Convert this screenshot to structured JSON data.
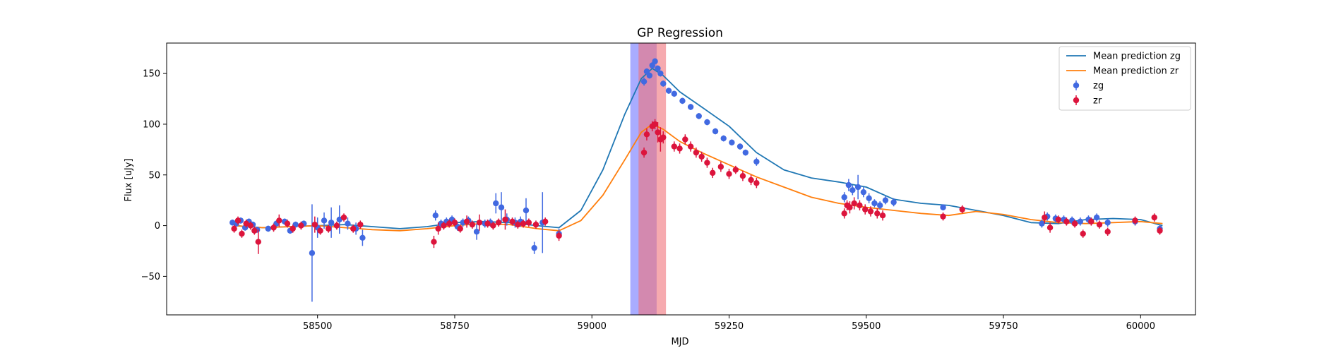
{
  "chart_data": {
    "type": "scatter",
    "title": "GP Regression",
    "xlabel": "MJD",
    "ylabel": "Flux [uJy]",
    "xlim": [
      58225,
      60100
    ],
    "ylim": [
      -88,
      180
    ],
    "xticks": [
      58500,
      58750,
      59000,
      59250,
      59500,
      59750,
      60000
    ],
    "yticks": [
      -50,
      0,
      50,
      100,
      150
    ],
    "grid": false,
    "legend_position": "top-right",
    "shaded_regions": [
      {
        "band": "zg",
        "x_start": 59070,
        "x_end": 59118,
        "color": "#6f74ff"
      },
      {
        "band": "zr",
        "x_start": 59085,
        "x_end": 59135,
        "color": "#f0727a"
      }
    ],
    "series": [
      {
        "name": "Mean prediction zg",
        "kind": "line",
        "color": "#1f77b4",
        "x": [
          58350,
          58400,
          58450,
          58500,
          58550,
          58600,
          58650,
          58700,
          58750,
          58800,
          58850,
          58900,
          58940,
          58980,
          59020,
          59060,
          59090,
          59110,
          59130,
          59160,
          59200,
          59250,
          59300,
          59350,
          59400,
          59450,
          59500,
          59550,
          59600,
          59650,
          59700,
          59750,
          59800,
          59850,
          59900,
          59950,
          60000,
          60040
        ],
        "y": [
          0,
          -2,
          -1,
          0,
          1,
          -1,
          -3,
          -1,
          3,
          4,
          3,
          0,
          -2,
          15,
          55,
          110,
          145,
          155,
          148,
          132,
          117,
          98,
          72,
          55,
          47,
          43,
          38,
          26,
          22,
          20,
          15,
          10,
          3,
          2,
          6,
          7,
          6,
          0
        ]
      },
      {
        "name": "Mean prediction zr",
        "kind": "line",
        "color": "#ff7f0e",
        "x": [
          58350,
          58400,
          58450,
          58500,
          58550,
          58600,
          58650,
          58700,
          58750,
          58800,
          58850,
          58900,
          58940,
          58980,
          59020,
          59060,
          59090,
          59110,
          59130,
          59160,
          59200,
          59250,
          59300,
          59350,
          59400,
          59450,
          59500,
          59550,
          59600,
          59650,
          59700,
          59750,
          59800,
          59850,
          59900,
          59950,
          60000,
          60040
        ],
        "y": [
          0,
          -2,
          -1,
          0,
          -2,
          -4,
          -5,
          -3,
          0,
          2,
          1,
          -3,
          -5,
          5,
          30,
          65,
          92,
          100,
          95,
          83,
          72,
          60,
          48,
          38,
          28,
          22,
          18,
          15,
          12,
          10,
          14,
          11,
          6,
          3,
          2,
          3,
          4,
          2
        ]
      },
      {
        "name": "zg",
        "kind": "errorbar",
        "color": "#4169e1",
        "x": [
          58345,
          58352,
          58360,
          58368,
          58375,
          58382,
          58390,
          58410,
          58425,
          58440,
          58450,
          58460,
          58475,
          58490,
          58500,
          58512,
          58525,
          58540,
          58555,
          58570,
          58582,
          58715,
          58725,
          58735,
          58745,
          58755,
          58765,
          58775,
          58790,
          58805,
          58815,
          58825,
          58835,
          58845,
          58860,
          58870,
          58880,
          58895,
          58910,
          58940,
          59095,
          59100,
          59105,
          59110,
          59115,
          59120,
          59125,
          59130,
          59140,
          59150,
          59165,
          59180,
          59195,
          59210,
          59225,
          59240,
          59255,
          59270,
          59280,
          59300,
          59460,
          59468,
          59475,
          59485,
          59495,
          59505,
          59515,
          59525,
          59535,
          59550,
          59640,
          59820,
          59830,
          59845,
          59860,
          59875,
          59890,
          59905,
          59920,
          59940,
          59990,
          60035
        ],
        "y": [
          3,
          2,
          5,
          -2,
          4,
          1,
          -4,
          -3,
          2,
          4,
          -5,
          1,
          2,
          -27,
          -2,
          5,
          3,
          6,
          2,
          -3,
          -12,
          10,
          2,
          4,
          6,
          -1,
          3,
          5,
          -6,
          2,
          3,
          22,
          18,
          6,
          3,
          4,
          15,
          -22,
          3,
          -8,
          142,
          152,
          148,
          158,
          162,
          155,
          150,
          140,
          133,
          130,
          123,
          117,
          108,
          102,
          93,
          86,
          82,
          78,
          72,
          63,
          28,
          40,
          35,
          38,
          33,
          27,
          22,
          20,
          25,
          23,
          18,
          2,
          9,
          7,
          6,
          5,
          4,
          6,
          8,
          3,
          4,
          -3
        ],
        "err": [
          3,
          3,
          3,
          3,
          3,
          3,
          3,
          3,
          3,
          3,
          3,
          3,
          3,
          48,
          10,
          8,
          15,
          14,
          6,
          6,
          8,
          5,
          4,
          4,
          4,
          4,
          4,
          4,
          8,
          4,
          4,
          10,
          15,
          6,
          5,
          5,
          12,
          6,
          30,
          5,
          4,
          3,
          3,
          3,
          3,
          3,
          3,
          3,
          3,
          3,
          3,
          3,
          3,
          3,
          3,
          3,
          3,
          3,
          3,
          4,
          5,
          6,
          5,
          12,
          5,
          5,
          4,
          4,
          4,
          4,
          3,
          4,
          4,
          4,
          4,
          4,
          4,
          4,
          4,
          4,
          4,
          4
        ]
      },
      {
        "name": "zr",
        "kind": "errorbar",
        "color": "#dc143c",
        "x": [
          58348,
          58355,
          58362,
          58370,
          58378,
          58385,
          58392,
          58420,
          58430,
          58445,
          58455,
          58470,
          58495,
          58505,
          58520,
          58535,
          58548,
          58565,
          58578,
          58712,
          58720,
          58730,
          58740,
          58750,
          58760,
          58772,
          58782,
          58795,
          58810,
          58820,
          58830,
          58842,
          58855,
          58865,
          58875,
          58885,
          58898,
          58915,
          58940,
          59095,
          59100,
          59110,
          59115,
          59120,
          59125,
          59130,
          59150,
          59160,
          59170,
          59180,
          59190,
          59200,
          59210,
          59220,
          59235,
          59250,
          59262,
          59275,
          59290,
          59300,
          59460,
          59465,
          59470,
          59478,
          59488,
          59498,
          59508,
          59520,
          59530,
          59640,
          59675,
          59825,
          59835,
          59850,
          59865,
          59880,
          59895,
          59910,
          59925,
          59940,
          59990,
          60025,
          60035
        ],
        "y": [
          -3,
          5,
          -8,
          2,
          0,
          -5,
          -16,
          -2,
          5,
          2,
          -3,
          0,
          1,
          -5,
          -3,
          0,
          8,
          -3,
          1,
          -16,
          -3,
          0,
          2,
          3,
          -3,
          4,
          1,
          3,
          2,
          0,
          3,
          6,
          4,
          1,
          2,
          3,
          1,
          4,
          -10,
          72,
          90,
          98,
          100,
          92,
          85,
          87,
          78,
          76,
          85,
          78,
          72,
          68,
          62,
          52,
          58,
          51,
          55,
          49,
          45,
          42,
          12,
          20,
          18,
          22,
          20,
          16,
          14,
          12,
          10,
          9,
          16,
          8,
          -2,
          6,
          4,
          2,
          -8,
          4,
          1,
          -6,
          5,
          8,
          -5
        ],
        "err": [
          4,
          4,
          4,
          4,
          4,
          4,
          12,
          4,
          6,
          4,
          4,
          4,
          8,
          4,
          4,
          4,
          4,
          4,
          4,
          6,
          6,
          4,
          4,
          4,
          4,
          6,
          4,
          8,
          4,
          4,
          4,
          10,
          4,
          4,
          4,
          4,
          4,
          4,
          5,
          5,
          6,
          5,
          5,
          10,
          12,
          6,
          5,
          5,
          5,
          5,
          5,
          5,
          5,
          5,
          5,
          5,
          4,
          5,
          5,
          5,
          5,
          5,
          6,
          6,
          5,
          5,
          5,
          5,
          5,
          4,
          4,
          6,
          5,
          4,
          4,
          4,
          4,
          4,
          4,
          4,
          4,
          4,
          4
        ]
      }
    ]
  }
}
